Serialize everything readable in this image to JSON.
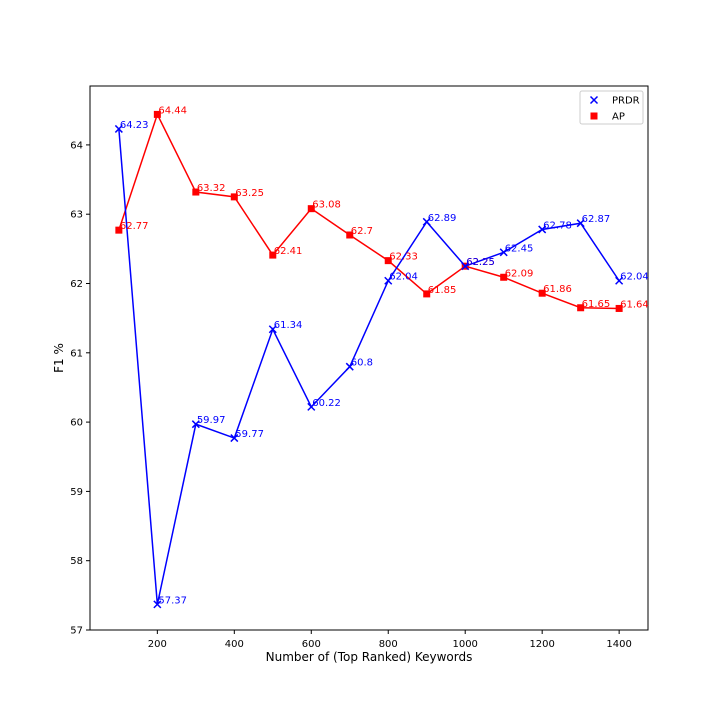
{
  "chart_data": {
    "type": "line",
    "title": "",
    "xlabel": "Number of (Top Ranked) Keywords",
    "ylabel": "F1 %",
    "xlim": [
      25,
      1475
    ],
    "ylim": [
      57,
      64.85
    ],
    "xticks": [
      200,
      400,
      600,
      800,
      1000,
      1200,
      1400
    ],
    "yticks": [
      57,
      58,
      59,
      60,
      61,
      62,
      63,
      64
    ],
    "grid": false,
    "legend_position": "top-right",
    "x": [
      100,
      200,
      300,
      400,
      500,
      600,
      700,
      800,
      900,
      1000,
      1100,
      1200,
      1300,
      1400
    ],
    "series": [
      {
        "name": "PRDR",
        "color": "#0000ff",
        "marker": "x",
        "values": [
          64.23,
          57.37,
          59.97,
          59.77,
          61.34,
          60.22,
          60.8,
          62.04,
          62.89,
          62.25,
          62.45,
          62.78,
          62.87,
          62.04
        ]
      },
      {
        "name": "AP",
        "color": "#ff0000",
        "marker": "square",
        "values": [
          62.77,
          64.44,
          63.32,
          63.25,
          62.41,
          63.08,
          62.7,
          62.33,
          61.85,
          62.25,
          62.09,
          61.86,
          61.65,
          61.64
        ]
      }
    ]
  }
}
